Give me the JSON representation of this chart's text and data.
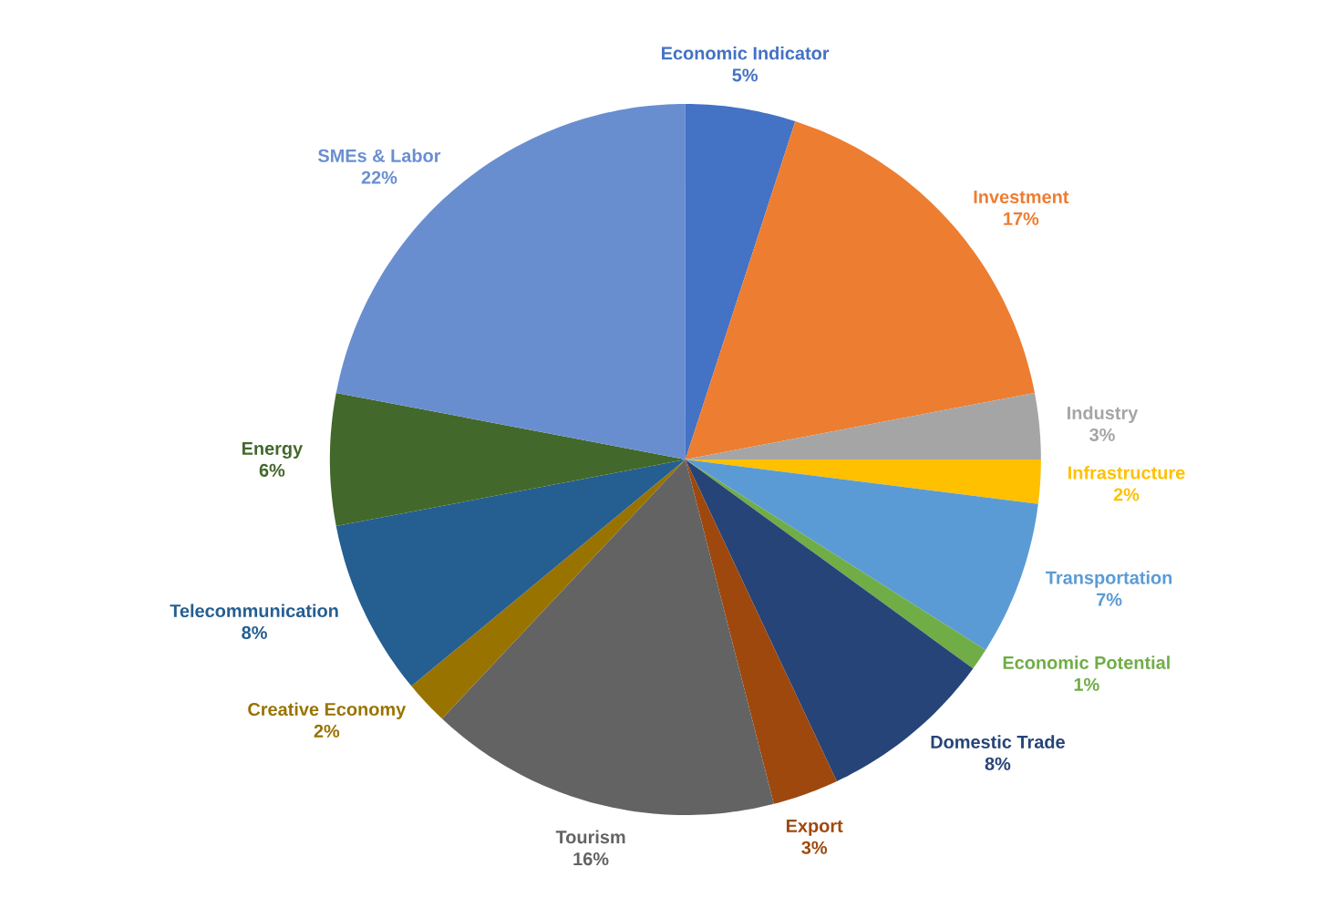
{
  "chart_data": {
    "type": "pie",
    "categories": [
      "Economic Indicator",
      "Investment",
      "Industry",
      "Infrastructure",
      "Transportation",
      "Economic Potential",
      "Domestic Trade",
      "Export",
      "Tourism",
      "Creative Economy",
      "Telecommunication",
      "Energy",
      "SMEs & Labor"
    ],
    "values": [
      5,
      17,
      3,
      2,
      7,
      1,
      8,
      3,
      16,
      2,
      8,
      6,
      22
    ],
    "value_labels": [
      "5%",
      "17%",
      "3%",
      "2%",
      "7%",
      "1%",
      "8%",
      "3%",
      "16%",
      "2%",
      "8%",
      "6%",
      "22%"
    ],
    "colors": [
      "#4472c4",
      "#ed7d31",
      "#a5a5a5",
      "#ffc000",
      "#5b9bd5",
      "#70ad47",
      "#264478",
      "#9e480e",
      "#636363",
      "#997300",
      "#255e91",
      "#43682b",
      "#698ed0"
    ]
  }
}
